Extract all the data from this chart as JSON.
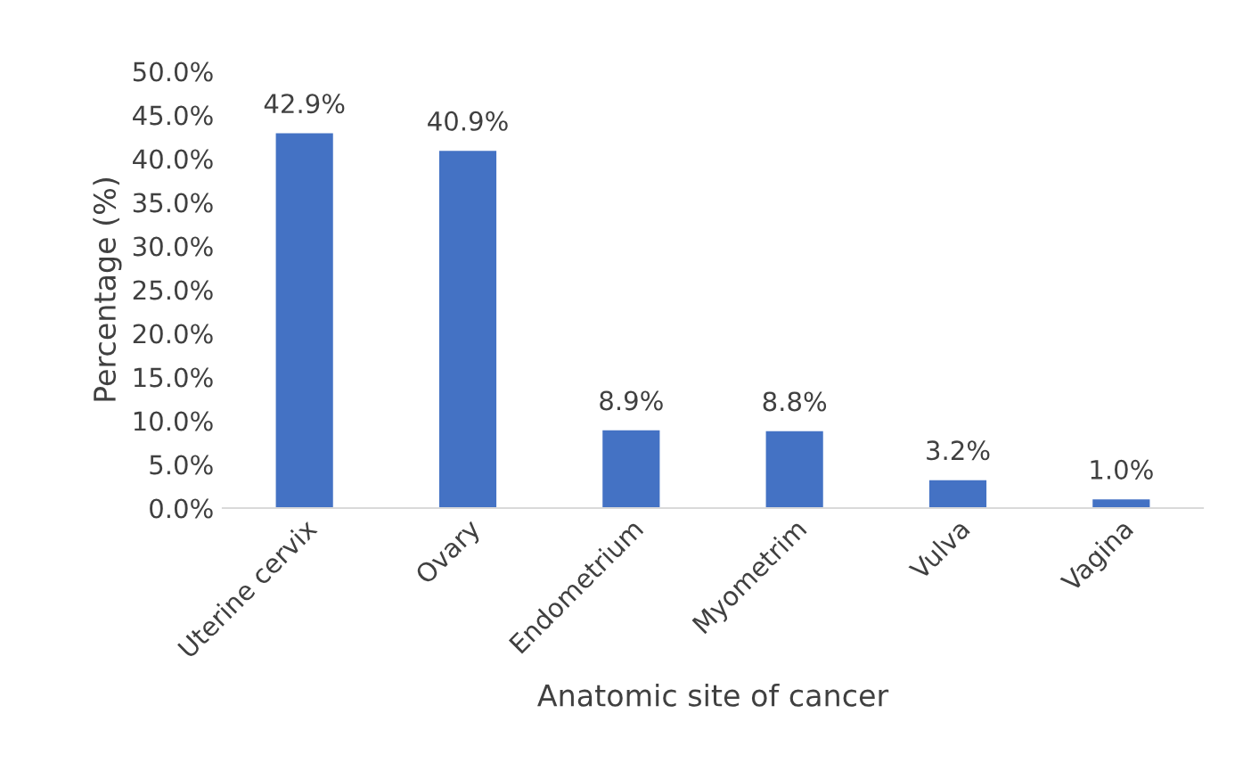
{
  "chart_data": {
    "type": "bar",
    "xlabel": "Anatomic site of cancer",
    "ylabel": "Percentage (%)",
    "categories": [
      "Uterine cervix",
      "Ovary",
      "Endometrium",
      "Myometrim",
      "Vulva",
      "Vagina"
    ],
    "values": [
      42.9,
      40.9,
      8.9,
      8.8,
      3.2,
      1.0
    ],
    "value_labels": [
      "42.9%",
      "40.9%",
      "8.9%",
      "8.8%",
      "3.2%",
      "1.0%"
    ],
    "color": "#4472c4",
    "ylim": [
      0,
      50
    ],
    "yticks": [
      {
        "value": 0,
        "label": "0.0%"
      },
      {
        "value": 5,
        "label": "5.0%"
      },
      {
        "value": 10,
        "label": "10.0%"
      },
      {
        "value": 15,
        "label": "15.0%"
      },
      {
        "value": 20,
        "label": "20.0%"
      },
      {
        "value": 25,
        "label": "25.0%"
      },
      {
        "value": 30,
        "label": "30.0%"
      },
      {
        "value": 35,
        "label": "35.0%"
      },
      {
        "value": 40,
        "label": "40.0%"
      },
      {
        "value": 45,
        "label": "45.0%"
      },
      {
        "value": 50,
        "label": "50.0%"
      }
    ],
    "grid": false,
    "legend": false
  }
}
